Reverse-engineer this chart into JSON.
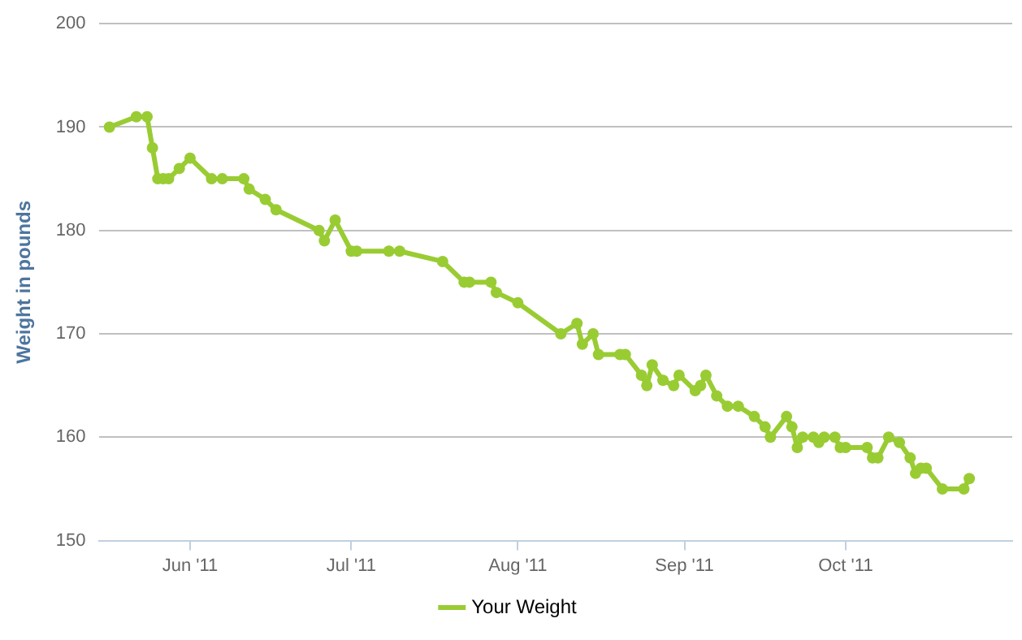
{
  "chart_data": {
    "type": "line",
    "ylabel": "Weight in pounds",
    "x": [
      "2011-05-17",
      "2011-05-22",
      "2011-05-24",
      "2011-05-25",
      "2011-05-26",
      "2011-05-27",
      "2011-05-28",
      "2011-05-30",
      "2011-06-01",
      "2011-06-05",
      "2011-06-07",
      "2011-06-11",
      "2011-06-12",
      "2011-06-15",
      "2011-06-17",
      "2011-06-25",
      "2011-06-26",
      "2011-06-28",
      "2011-07-01",
      "2011-07-02",
      "2011-07-08",
      "2011-07-10",
      "2011-07-18",
      "2011-07-22",
      "2011-07-23",
      "2011-07-27",
      "2011-07-28",
      "2011-08-01",
      "2011-08-09",
      "2011-08-12",
      "2011-08-13",
      "2011-08-15",
      "2011-08-16",
      "2011-08-20",
      "2011-08-21",
      "2011-08-24",
      "2011-08-25",
      "2011-08-26",
      "2011-08-28",
      "2011-08-30",
      "2011-08-31",
      "2011-09-03",
      "2011-09-04",
      "2011-09-05",
      "2011-09-07",
      "2011-09-09",
      "2011-09-11",
      "2011-09-14",
      "2011-09-16",
      "2011-09-17",
      "2011-09-20",
      "2011-09-21",
      "2011-09-22",
      "2011-09-23",
      "2011-09-25",
      "2011-09-26",
      "2011-09-27",
      "2011-09-29",
      "2011-09-30",
      "2011-10-01",
      "2011-10-05",
      "2011-10-06",
      "2011-10-07",
      "2011-10-09",
      "2011-10-11",
      "2011-10-13",
      "2011-10-14",
      "2011-10-15",
      "2011-10-16",
      "2011-10-19",
      "2011-10-23",
      "2011-10-24"
    ],
    "series": [
      {
        "name": "Your Weight",
        "color": "#99cc33",
        "values": [
          190,
          191,
          191,
          188,
          185,
          185,
          185,
          186,
          187,
          185,
          185,
          185,
          184,
          183,
          182,
          180,
          179,
          181,
          178,
          178,
          178,
          178,
          177,
          175,
          175,
          175,
          174,
          173,
          170,
          171,
          169,
          170,
          168,
          168,
          168,
          166,
          165,
          167,
          165.5,
          165,
          166,
          164.5,
          165,
          166,
          164,
          163,
          163,
          162,
          161,
          160,
          162,
          161,
          159,
          160,
          160,
          159.5,
          160,
          160,
          159,
          159,
          159,
          158,
          158,
          160,
          159.5,
          158,
          156.5,
          157,
          157,
          155,
          155,
          156
        ]
      }
    ],
    "xlim": [
      "2011-05-15",
      "2011-11-01"
    ],
    "xticks": [
      {
        "value": "2011-06-01",
        "label": "Jun '11"
      },
      {
        "value": "2011-07-01",
        "label": "Jul '11"
      },
      {
        "value": "2011-08-01",
        "label": "Aug '11"
      },
      {
        "value": "2011-09-01",
        "label": "Sep '11"
      },
      {
        "value": "2011-10-01",
        "label": "Oct '11"
      }
    ],
    "ylim": [
      150,
      200
    ],
    "yticks": [
      150,
      160,
      170,
      180,
      190,
      200
    ],
    "grid": "y",
    "legend": "bottom",
    "marker": "circle",
    "line_style": "solid"
  }
}
